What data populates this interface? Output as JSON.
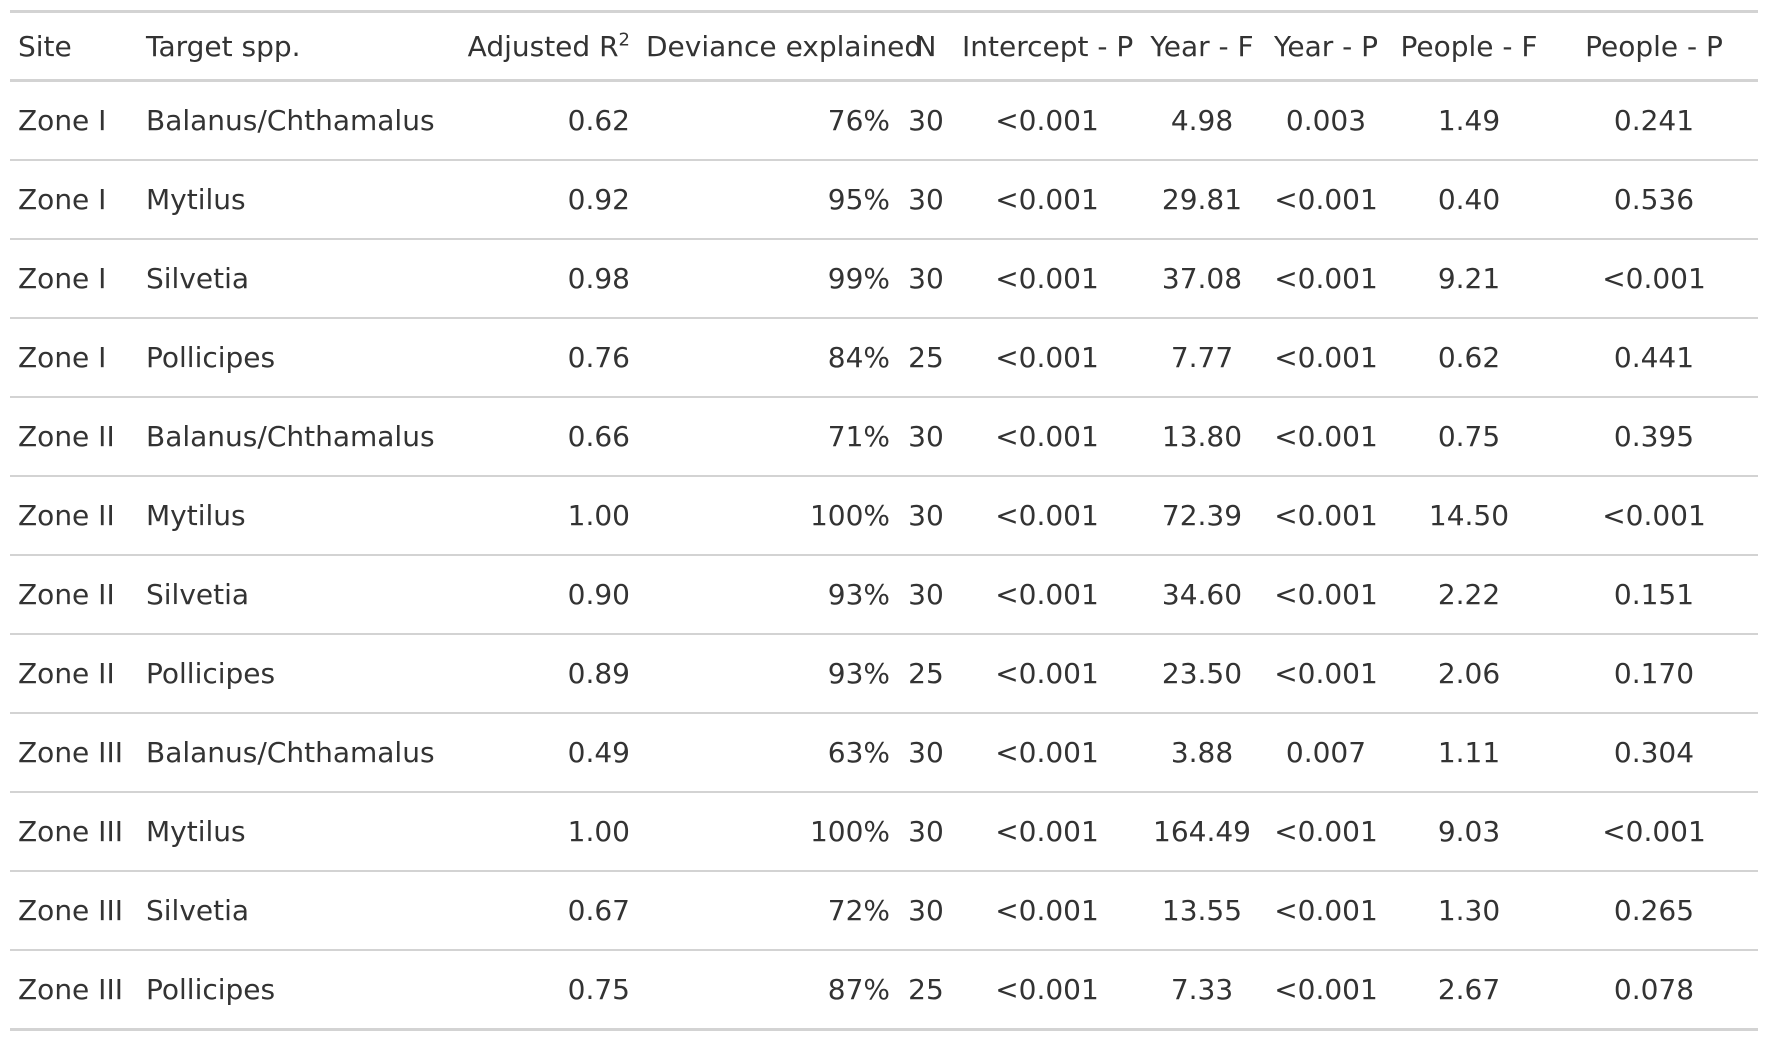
{
  "table": {
    "headers": {
      "site": "Site",
      "target": "Target spp.",
      "adj_r2": "Adjusted R",
      "adj_r2_sup": "2",
      "deviance": "Deviance explained",
      "n": "N",
      "intercept_p": "Intercept - P",
      "year_f": "Year - F",
      "year_p": "Year - P",
      "people_f": "People - F",
      "people_p": "People - P"
    },
    "rows": [
      {
        "site": "Zone I",
        "target": "Balanus/Chthamalus",
        "adj_r2": "0.62",
        "deviance": "76%",
        "n": "30",
        "intercept_p": "<0.001",
        "year_f": "4.98",
        "year_p": "0.003",
        "people_f": "1.49",
        "people_p": "0.241"
      },
      {
        "site": "Zone I",
        "target": "Mytilus",
        "adj_r2": "0.92",
        "deviance": "95%",
        "n": "30",
        "intercept_p": "<0.001",
        "year_f": "29.81",
        "year_p": "<0.001",
        "people_f": "0.40",
        "people_p": "0.536"
      },
      {
        "site": "Zone I",
        "target": "Silvetia",
        "adj_r2": "0.98",
        "deviance": "99%",
        "n": "30",
        "intercept_p": "<0.001",
        "year_f": "37.08",
        "year_p": "<0.001",
        "people_f": "9.21",
        "people_p": "<0.001"
      },
      {
        "site": "Zone I",
        "target": "Pollicipes",
        "adj_r2": "0.76",
        "deviance": "84%",
        "n": "25",
        "intercept_p": "<0.001",
        "year_f": "7.77",
        "year_p": "<0.001",
        "people_f": "0.62",
        "people_p": "0.441"
      },
      {
        "site": "Zone II",
        "target": "Balanus/Chthamalus",
        "adj_r2": "0.66",
        "deviance": "71%",
        "n": "30",
        "intercept_p": "<0.001",
        "year_f": "13.80",
        "year_p": "<0.001",
        "people_f": "0.75",
        "people_p": "0.395"
      },
      {
        "site": "Zone II",
        "target": "Mytilus",
        "adj_r2": "1.00",
        "deviance": "100%",
        "n": "30",
        "intercept_p": "<0.001",
        "year_f": "72.39",
        "year_p": "<0.001",
        "people_f": "14.50",
        "people_p": "<0.001"
      },
      {
        "site": "Zone II",
        "target": "Silvetia",
        "adj_r2": "0.90",
        "deviance": "93%",
        "n": "30",
        "intercept_p": "<0.001",
        "year_f": "34.60",
        "year_p": "<0.001",
        "people_f": "2.22",
        "people_p": "0.151"
      },
      {
        "site": "Zone II",
        "target": "Pollicipes",
        "adj_r2": "0.89",
        "deviance": "93%",
        "n": "25",
        "intercept_p": "<0.001",
        "year_f": "23.50",
        "year_p": "<0.001",
        "people_f": "2.06",
        "people_p": "0.170"
      },
      {
        "site": "Zone III",
        "target": "Balanus/Chthamalus",
        "adj_r2": "0.49",
        "deviance": "63%",
        "n": "30",
        "intercept_p": "<0.001",
        "year_f": "3.88",
        "year_p": "0.007",
        "people_f": "1.11",
        "people_p": "0.304"
      },
      {
        "site": "Zone III",
        "target": "Mytilus",
        "adj_r2": "1.00",
        "deviance": "100%",
        "n": "30",
        "intercept_p": "<0.001",
        "year_f": "164.49",
        "year_p": "<0.001",
        "people_f": "9.03",
        "people_p": "<0.001"
      },
      {
        "site": "Zone III",
        "target": "Silvetia",
        "adj_r2": "0.67",
        "deviance": "72%",
        "n": "30",
        "intercept_p": "<0.001",
        "year_f": "13.55",
        "year_p": "<0.001",
        "people_f": "1.30",
        "people_p": "0.265"
      },
      {
        "site": "Zone III",
        "target": "Pollicipes",
        "adj_r2": "0.75",
        "deviance": "87%",
        "n": "25",
        "intercept_p": "<0.001",
        "year_f": "7.33",
        "year_p": "<0.001",
        "people_f": "2.67",
        "people_p": "0.078"
      }
    ]
  },
  "colors": {
    "text": "#333333",
    "rule": "#d3d3d3",
    "background": "#ffffff"
  }
}
